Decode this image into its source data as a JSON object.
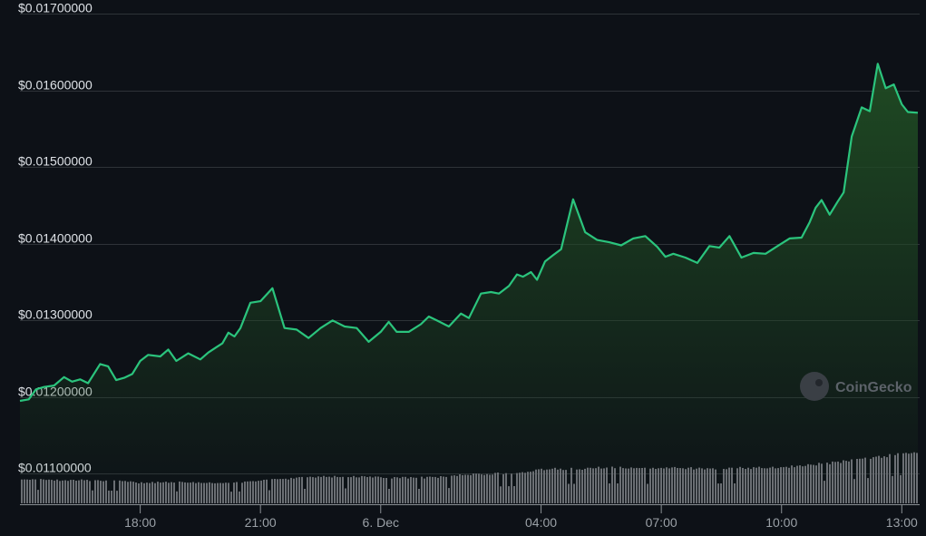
{
  "watermark": {
    "text": "CoinGecko"
  },
  "colors": {
    "background": "#0d1117",
    "line": "#2bc47d",
    "area_top": "#1f4a23",
    "gridline": "#2e3338",
    "volume": "#6b6f74"
  },
  "chart_data": [
    {
      "type": "area",
      "title": "",
      "xlabel": "",
      "ylabel": "",
      "y_format": "$0.00000000",
      "ylim": [
        0.0106,
        0.0173
      ],
      "yticks": [
        0.017,
        0.016,
        0.015,
        0.014,
        0.013,
        0.012,
        0.011
      ],
      "ytick_labels": [
        "$0.01700000",
        "$0.01600000",
        "$0.01500000",
        "$0.01400000",
        "$0.01300000",
        "$0.01200000",
        "$0.01100000"
      ],
      "xlim": [
        "15:00",
        "13:10"
      ],
      "xticks": [
        {
          "t": 3.0,
          "label": "18:00"
        },
        {
          "t": 6.0,
          "label": "21:00"
        },
        {
          "t": 9.0,
          "label": "6. Dec"
        },
        {
          "t": 13.0,
          "label": "04:00"
        },
        {
          "t": 16.0,
          "label": "07:00"
        },
        {
          "t": 19.0,
          "label": "10:00"
        },
        {
          "t": 22.0,
          "label": "13:00"
        }
      ],
      "grid": true,
      "legend": "none",
      "series": [
        {
          "x": [
            0.0,
            0.22,
            0.4,
            0.6,
            0.85,
            1.1,
            1.3,
            1.5,
            1.7,
            2.0,
            2.2,
            2.4,
            2.6,
            2.8,
            3.0,
            3.2,
            3.5,
            3.7,
            3.9,
            4.2,
            4.5,
            4.7,
            4.9,
            5.05,
            5.2,
            5.35,
            5.5,
            5.75,
            6.0,
            6.3,
            6.6,
            6.9,
            7.2,
            7.5,
            7.8,
            8.1,
            8.4,
            8.7,
            9.0,
            9.2,
            9.4,
            9.7,
            10.0,
            10.2,
            10.4,
            10.7,
            11.0,
            11.2,
            11.5,
            11.75,
            11.95,
            12.2,
            12.4,
            12.55,
            12.75,
            12.9,
            13.1,
            13.3,
            13.5,
            13.8,
            14.1,
            14.4,
            14.7,
            15.0,
            15.3,
            15.6,
            15.9,
            16.1,
            16.3,
            16.6,
            16.9,
            17.2,
            17.45,
            17.7,
            18.0,
            18.3,
            18.6,
            18.9,
            19.2,
            19.5,
            19.7,
            19.85,
            20.0,
            20.2,
            20.4,
            20.55,
            20.75,
            21.0,
            21.2,
            21.4,
            21.6,
            21.8,
            22.0,
            22.15,
            22.4
          ],
          "y": [
            0.01195,
            0.01197,
            0.0121,
            0.01213,
            0.01215,
            0.01226,
            0.0122,
            0.01223,
            0.01218,
            0.01243,
            0.0124,
            0.01222,
            0.01225,
            0.0123,
            0.01247,
            0.01255,
            0.01253,
            0.01262,
            0.01247,
            0.01257,
            0.01249,
            0.01258,
            0.01265,
            0.0127,
            0.01284,
            0.01279,
            0.0129,
            0.01323,
            0.01325,
            0.01342,
            0.0129,
            0.01288,
            0.01277,
            0.0129,
            0.013,
            0.01292,
            0.0129,
            0.01272,
            0.01285,
            0.01298,
            0.01285,
            0.01285,
            0.01295,
            0.01305,
            0.013,
            0.01292,
            0.01309,
            0.01303,
            0.01335,
            0.01337,
            0.01335,
            0.01345,
            0.0136,
            0.01357,
            0.01363,
            0.01353,
            0.01377,
            0.01385,
            0.01393,
            0.01458,
            0.01415,
            0.01405,
            0.01402,
            0.01398,
            0.01407,
            0.0141,
            0.01396,
            0.01383,
            0.01387,
            0.01382,
            0.01375,
            0.01397,
            0.01395,
            0.0141,
            0.01382,
            0.01388,
            0.01387,
            0.01397,
            0.01407,
            0.01408,
            0.01428,
            0.01447,
            0.01457,
            0.01438,
            0.01455,
            0.01467,
            0.0154,
            0.01578,
            0.01573,
            0.01635,
            0.01603,
            0.01608,
            0.01582,
            0.01572,
            0.01571
          ]
        }
      ]
    },
    {
      "type": "bar",
      "title": "",
      "series": [
        {
          "x": [
            0.0,
            0.5,
            1.0,
            1.5,
            2.0,
            2.5,
            3.0,
            3.5,
            4.0,
            4.5,
            5.0,
            5.5,
            6.0,
            6.5,
            7.0,
            7.5,
            8.0,
            8.5,
            9.0,
            9.5,
            10.0,
            10.5,
            11.0,
            11.5,
            12.0,
            12.5,
            13.0,
            13.5,
            14.0,
            14.5,
            15.0,
            15.5,
            16.0,
            16.5,
            17.0,
            17.5,
            18.0,
            18.5,
            19.0,
            19.5,
            20.0,
            20.5,
            21.0,
            21.5,
            22.0,
            22.4
          ],
          "values": [
            27,
            27,
            26,
            26,
            26,
            25,
            23,
            24,
            24,
            23,
            23,
            24,
            26,
            27,
            29,
            30,
            30,
            30,
            29,
            29,
            29,
            30,
            32,
            33,
            34,
            35,
            38,
            39,
            39,
            40,
            40,
            39,
            39,
            40,
            39,
            40,
            40,
            40,
            41,
            43,
            45,
            47,
            50,
            53,
            57,
            58
          ]
        }
      ]
    }
  ]
}
